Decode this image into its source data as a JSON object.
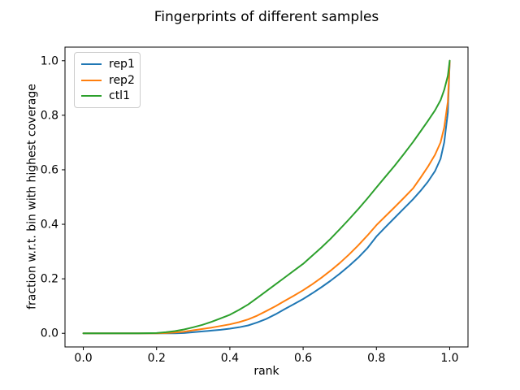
{
  "chart_data": {
    "type": "line",
    "title": "Fingerprints of different samples",
    "xlabel": "rank",
    "ylabel": "fraction w.r.t. bin with highest coverage",
    "xlim": [
      -0.05,
      1.05
    ],
    "ylim": [
      -0.05,
      1.05
    ],
    "x_ticks": [
      0.0,
      0.2,
      0.4,
      0.6,
      0.8,
      1.0
    ],
    "x_tick_labels": [
      "0.0",
      "0.2",
      "0.4",
      "0.6",
      "0.8",
      "1.0"
    ],
    "y_ticks": [
      0.0,
      0.2,
      0.4,
      0.6,
      0.8,
      1.0
    ],
    "y_tick_labels": [
      "0.0",
      "0.2",
      "0.4",
      "0.6",
      "0.8",
      "1.0"
    ],
    "grid": false,
    "legend_position": "upper left",
    "background_color": "#ffffff",
    "spine_color": "#000000",
    "series": [
      {
        "name": "rep1",
        "color": "#1f77b4",
        "x": [
          0,
          0.05,
          0.1,
          0.15,
          0.2,
          0.225,
          0.25,
          0.275,
          0.3,
          0.325,
          0.35,
          0.375,
          0.4,
          0.425,
          0.45,
          0.475,
          0.5,
          0.525,
          0.55,
          0.575,
          0.6,
          0.625,
          0.65,
          0.675,
          0.7,
          0.725,
          0.75,
          0.775,
          0.8,
          0.825,
          0.85,
          0.875,
          0.9,
          0.92,
          0.94,
          0.96,
          0.975,
          0.985,
          0.995,
          1.0
        ],
        "y": [
          0,
          0,
          0,
          0,
          0,
          0,
          0,
          0.001,
          0.004,
          0.007,
          0.01,
          0.013,
          0.017,
          0.022,
          0.029,
          0.04,
          0.053,
          0.07,
          0.089,
          0.107,
          0.126,
          0.147,
          0.169,
          0.193,
          0.219,
          0.247,
          0.277,
          0.312,
          0.355,
          0.39,
          0.424,
          0.458,
          0.492,
          0.522,
          0.555,
          0.595,
          0.64,
          0.7,
          0.81,
          1.0
        ]
      },
      {
        "name": "rep2",
        "color": "#ff7f0e",
        "x": [
          0,
          0.05,
          0.1,
          0.15,
          0.2,
          0.225,
          0.25,
          0.275,
          0.3,
          0.325,
          0.35,
          0.375,
          0.4,
          0.425,
          0.45,
          0.475,
          0.5,
          0.525,
          0.55,
          0.575,
          0.6,
          0.625,
          0.65,
          0.675,
          0.7,
          0.725,
          0.75,
          0.775,
          0.8,
          0.825,
          0.85,
          0.875,
          0.9,
          0.92,
          0.94,
          0.96,
          0.975,
          0.985,
          0.995,
          1.0
        ],
        "y": [
          0,
          0,
          0,
          0,
          0,
          0.001,
          0.003,
          0.006,
          0.011,
          0.016,
          0.021,
          0.027,
          0.033,
          0.041,
          0.051,
          0.065,
          0.082,
          0.1,
          0.119,
          0.138,
          0.158,
          0.18,
          0.204,
          0.23,
          0.258,
          0.289,
          0.322,
          0.358,
          0.397,
          0.43,
          0.463,
          0.497,
          0.532,
          0.57,
          0.61,
          0.655,
          0.7,
          0.755,
          0.85,
          1.0
        ]
      },
      {
        "name": "ctl1",
        "color": "#2ca02c",
        "x": [
          0,
          0.05,
          0.1,
          0.15,
          0.2,
          0.225,
          0.25,
          0.275,
          0.3,
          0.325,
          0.35,
          0.375,
          0.4,
          0.425,
          0.45,
          0.475,
          0.5,
          0.525,
          0.55,
          0.575,
          0.6,
          0.625,
          0.65,
          0.675,
          0.7,
          0.725,
          0.75,
          0.775,
          0.8,
          0.825,
          0.85,
          0.875,
          0.9,
          0.92,
          0.94,
          0.96,
          0.975,
          0.985,
          0.995,
          1.0
        ],
        "y": [
          0,
          0,
          0,
          0,
          0.001,
          0.004,
          0.008,
          0.014,
          0.022,
          0.031,
          0.042,
          0.055,
          0.068,
          0.086,
          0.106,
          0.13,
          0.155,
          0.18,
          0.205,
          0.23,
          0.255,
          0.285,
          0.315,
          0.347,
          0.382,
          0.418,
          0.455,
          0.494,
          0.535,
          0.575,
          0.615,
          0.658,
          0.702,
          0.74,
          0.778,
          0.818,
          0.855,
          0.893,
          0.945,
          1.0
        ]
      }
    ]
  }
}
